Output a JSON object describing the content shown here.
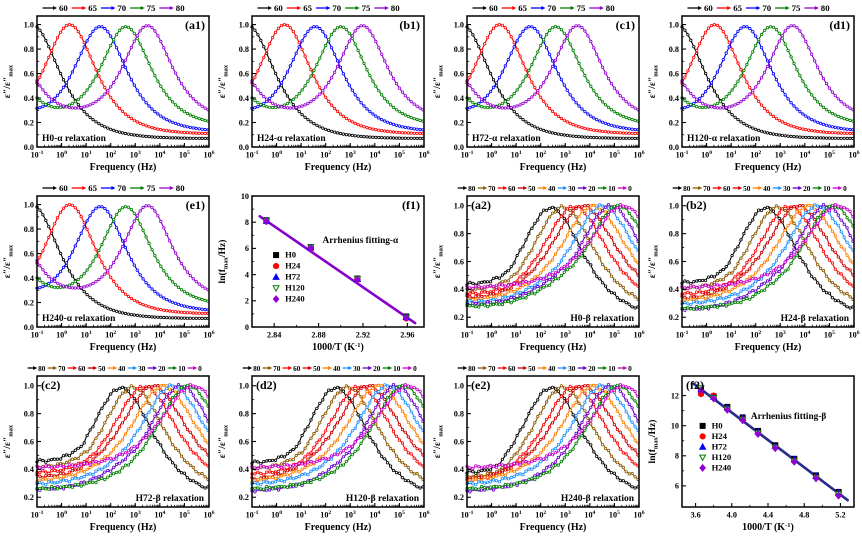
{
  "figure": {
    "background": "#ffffff",
    "columns": 4,
    "rows": 3
  },
  "series_defs": {
    "alpha": [
      {
        "name": "60",
        "color": "#000000",
        "xp": -1.2,
        "p": 1.0,
        "e6": 0.07,
        "t0": 0.0,
        "k": 1.0
      },
      {
        "name": "65",
        "color": "#ff0000",
        "xp": 0.33,
        "p": 1.0,
        "e6": 0.11,
        "t0": 0.0,
        "k": 1.05
      },
      {
        "name": "70",
        "color": "#0000ff",
        "xp": 1.58,
        "p": 0.98,
        "e6": 0.14,
        "t0": 0.08,
        "k": 1.05
      },
      {
        "name": "75",
        "color": "#008000",
        "xp": 2.62,
        "p": 0.98,
        "e6": 0.21,
        "t0": 0.2,
        "k": 1.1
      },
      {
        "name": "80",
        "color": "#9400d3",
        "xp": 3.5,
        "p": 0.99,
        "e6": 0.3,
        "t0": 0.32,
        "k": 1.15
      }
    ],
    "beta": [
      {
        "name": "80",
        "color": "#000000",
        "xp": 2.42,
        "p": 0.985,
        "e6": 0.26,
        "k": 0.85
      },
      {
        "name": "70",
        "color": "#8b5a00",
        "xp": 2.9,
        "p": 0.99,
        "e6": 0.33,
        "k": 0.85
      },
      {
        "name": "60",
        "color": "#ff0000",
        "xp": 3.37,
        "p": 0.995,
        "e6": 0.42,
        "k": 0.85
      },
      {
        "name": "50",
        "color": "#cc0000",
        "xp": 3.73,
        "p": 1.0,
        "e6": 0.5,
        "k": 0.85
      },
      {
        "name": "40",
        "color": "#ff8000",
        "xp": 4.15,
        "p": 1.0,
        "e6": 0.58,
        "k": 0.85
      },
      {
        "name": "30",
        "color": "#1e90ff",
        "xp": 4.52,
        "p": 1.0,
        "e6": 0.66,
        "k": 0.85
      },
      {
        "name": "20",
        "color": "#6600cc",
        "xp": 4.85,
        "p": 1.0,
        "e6": 0.74,
        "k": 0.85
      },
      {
        "name": "10",
        "color": "#008000",
        "xp": 5.15,
        "p": 1.0,
        "e6": 0.84,
        "k": 0.85
      },
      {
        "name": "0",
        "color": "#cc00cc",
        "xp": 5.35,
        "p": 1.0,
        "e6": 0.92,
        "k": 0.85
      }
    ],
    "arrhenius_legend": [
      {
        "name": "H0",
        "color": "#000000",
        "marker": "square",
        "open": false
      },
      {
        "name": "H24",
        "color": "#ff0000",
        "marker": "circle",
        "open": false
      },
      {
        "name": "H72",
        "color": "#0000ff",
        "marker": "triangle",
        "open": false
      },
      {
        "name": "H120",
        "color": "#008000",
        "marker": "tridown",
        "open": true
      },
      {
        "name": "H240",
        "color": "#9400d3",
        "marker": "diamond",
        "open": false
      }
    ]
  },
  "chart_data": [
    {
      "id": "a1",
      "type": "line",
      "model": "alpha",
      "panel_label": "(a1)",
      "panel_pos": "tr",
      "title": "H0-α relaxation",
      "title_pos": "bl",
      "xlabel": "Frequency (Hz)",
      "ylabel": {
        "pre": "ε″/ε″",
        "sub": "max"
      },
      "xlog": true,
      "xrange": [
        -1,
        6
      ],
      "yrange": [
        0,
        1.07
      ],
      "yticks": [
        0.0,
        0.2,
        0.4,
        0.6,
        0.8,
        1.0
      ],
      "ytick_decimals": 1,
      "legend_pos": "top",
      "series": "alpha"
    },
    {
      "id": "b1",
      "type": "line",
      "model": "alpha",
      "panel_label": "(b1)",
      "panel_pos": "tr",
      "title": "H24-α relaxation",
      "title_pos": "bl",
      "xlabel": "Frequency (Hz)",
      "ylabel": {
        "pre": "ε″/ε″",
        "sub": "max"
      },
      "xlog": true,
      "xrange": [
        -1,
        6
      ],
      "yrange": [
        0,
        1.07
      ],
      "yticks": [
        0.0,
        0.2,
        0.4,
        0.6,
        0.8,
        1.0
      ],
      "ytick_decimals": 1,
      "legend_pos": "top",
      "series": "alpha"
    },
    {
      "id": "c1",
      "type": "line",
      "model": "alpha",
      "panel_label": "(c1)",
      "panel_pos": "tr",
      "title": "H72-α relaxation",
      "title_pos": "bl",
      "xlabel": "Frequency (Hz)",
      "ylabel": {
        "pre": "ε″/ε″",
        "sub": "max"
      },
      "xlog": true,
      "xrange": [
        -1,
        6
      ],
      "yrange": [
        0,
        1.07
      ],
      "yticks": [
        0.0,
        0.2,
        0.4,
        0.6,
        0.8,
        1.0
      ],
      "ytick_decimals": 1,
      "legend_pos": "top",
      "series": "alpha"
    },
    {
      "id": "d1",
      "type": "line",
      "model": "alpha",
      "panel_label": "(d1)",
      "panel_pos": "tr",
      "title": "H120-α relaxation",
      "title_pos": "bl",
      "xlabel": "Frequency (Hz)",
      "ylabel": {
        "pre": "ε″/ε″",
        "sub": "max"
      },
      "xlog": true,
      "xrange": [
        -1,
        6
      ],
      "yrange": [
        0,
        1.07
      ],
      "yticks": [
        0.0,
        0.2,
        0.4,
        0.6,
        0.8,
        1.0
      ],
      "ytick_decimals": 1,
      "legend_pos": "top",
      "series": "alpha"
    },
    {
      "id": "e1",
      "type": "line",
      "model": "alpha",
      "panel_label": "(e1)",
      "panel_pos": "tr",
      "title": "H240-α relaxation",
      "title_pos": "bl",
      "xlabel": "Frequency (Hz)",
      "ylabel": {
        "pre": "ε″/ε″",
        "sub": "max"
      },
      "xlog": true,
      "xrange": [
        -1,
        6
      ],
      "yrange": [
        0,
        1.07
      ],
      "yticks": [
        0.0,
        0.2,
        0.4,
        0.6,
        0.8,
        1.0
      ],
      "ytick_decimals": 1,
      "legend_pos": "top",
      "series": "alpha"
    },
    {
      "id": "f1",
      "type": "scatter",
      "model": "arrhenius",
      "panel_label": "(f1)",
      "panel_pos": "tr",
      "annotation": {
        "text": "Arrhenius fitting-α",
        "fx": 0.63,
        "fy": 0.36
      },
      "xlabel": {
        "pre": "1000/T (K",
        "sup": "-1",
        "post": ")"
      },
      "ylabel": {
        "pre": "ln(f",
        "sub": "max",
        "post": "/Hz)"
      },
      "xrange": [
        2.82,
        2.975
      ],
      "xticks": [
        2.84,
        2.88,
        2.92,
        2.96
      ],
      "xtick_decimals": 2,
      "yrange": [
        0,
        10
      ],
      "yticks": [
        0,
        2,
        4,
        6,
        8,
        10
      ],
      "ytick_decimals": 0,
      "x": [
        2.833,
        2.873,
        2.915,
        2.959
      ],
      "series_y": [
        [
          8.15,
          6.1,
          3.7,
          0.8
        ],
        [
          8.05,
          6.0,
          3.6,
          0.65
        ],
        [
          8.1,
          6.05,
          3.65,
          0.75
        ],
        [
          8.12,
          6.08,
          3.68,
          0.72
        ],
        [
          8.08,
          6.02,
          3.62,
          0.7
        ]
      ],
      "fit_line": {
        "color": "#8800cc",
        "x1": 2.827,
        "y1": 8.45,
        "x2": 2.967,
        "y2": 0.3
      },
      "legend": {
        "fx": 0.14,
        "fy": 0.47,
        "dy": 11
      }
    },
    {
      "id": "a2",
      "type": "line",
      "model": "beta",
      "panel_label": "(a2)",
      "panel_pos": "tl",
      "title": "H0-β relaxation",
      "title_pos": "br",
      "xlabel": "Frequency (Hz)",
      "ylabel": {
        "pre": "ε″/ε″",
        "sub": "max"
      },
      "xlog": true,
      "xrange": [
        -1,
        6
      ],
      "yrange": [
        0.13,
        1.07
      ],
      "yticks": [
        0.2,
        0.4,
        0.6,
        0.8,
        1.0
      ],
      "ytick_decimals": 1,
      "legend_pos": "top",
      "series": "beta",
      "start_ys": [
        0.44,
        0.4,
        0.37,
        0.345,
        0.325,
        0.31,
        0.295,
        0.28,
        0.26
      ]
    },
    {
      "id": "b2",
      "type": "line",
      "model": "beta",
      "panel_label": "(b2)",
      "panel_pos": "tl",
      "title": "H24-β relaxation",
      "title_pos": "br",
      "xlabel": "Frequency (Hz)",
      "ylabel": {
        "pre": "ε″/ε″",
        "sub": "max"
      },
      "xlog": true,
      "xrange": [
        -1,
        6
      ],
      "yrange": [
        0.13,
        1.07
      ],
      "yticks": [
        0.2,
        0.4,
        0.6,
        0.8,
        1.0
      ],
      "ytick_decimals": 1,
      "legend_pos": "top",
      "series": "beta",
      "start_ys": [
        0.45,
        0.41,
        0.37,
        0.34,
        0.31,
        0.285,
        0.26,
        0.235,
        0.18
      ]
    },
    {
      "id": "c2",
      "type": "line",
      "model": "beta",
      "panel_label": "(c2)",
      "panel_pos": "tl",
      "title": "H72-β relaxation",
      "title_pos": "br",
      "xlabel": "Frequency (Hz)",
      "ylabel": {
        "pre": "ε″/ε″",
        "sub": "max"
      },
      "xlog": true,
      "xrange": [
        -1,
        6
      ],
      "yrange": [
        0.13,
        1.07
      ],
      "yticks": [
        0.2,
        0.4,
        0.6,
        0.8,
        1.0
      ],
      "ytick_decimals": 1,
      "legend_pos": "top",
      "series": "beta",
      "start_ys": [
        0.46,
        0.42,
        0.38,
        0.35,
        0.32,
        0.29,
        0.26,
        0.21,
        0.19
      ]
    },
    {
      "id": "d2",
      "type": "line",
      "model": "beta",
      "panel_label": "(d2)",
      "panel_pos": "tl",
      "title": "H120-β relaxation",
      "title_pos": "br",
      "xlabel": "Frequency (Hz)",
      "ylabel": {
        "pre": "ε″/ε″",
        "sub": "max"
      },
      "xlog": true,
      "xrange": [
        -1,
        6
      ],
      "yrange": [
        0.13,
        1.07
      ],
      "yticks": [
        0.2,
        0.4,
        0.6,
        0.8,
        1.0
      ],
      "ytick_decimals": 1,
      "legend_pos": "top",
      "series": "beta",
      "start_ys": [
        0.45,
        0.41,
        0.37,
        0.33,
        0.3,
        0.27,
        0.24,
        0.19,
        0.15
      ]
    },
    {
      "id": "e2",
      "type": "line",
      "model": "beta",
      "panel_label": "(e2)",
      "panel_pos": "tl",
      "title": "H240-β relaxation",
      "title_pos": "br",
      "xlabel": "Frequency (Hz)",
      "ylabel": {
        "pre": "ε″/ε″",
        "sub": "max"
      },
      "xlog": true,
      "xrange": [
        -1,
        6
      ],
      "yrange": [
        0.13,
        1.07
      ],
      "yticks": [
        0.2,
        0.4,
        0.6,
        0.8,
        1.0
      ],
      "ytick_decimals": 1,
      "legend_pos": "top",
      "series": "beta",
      "start_ys": [
        0.38,
        0.35,
        0.33,
        0.3,
        0.28,
        0.26,
        0.23,
        0.2,
        0.17
      ]
    },
    {
      "id": "f2",
      "type": "scatter",
      "model": "arrhenius",
      "panel_label": "(f2)",
      "panel_pos": "tl",
      "annotation": {
        "text": "Arrhenius fitting-β",
        "fx": 0.62,
        "fy": 0.33
      },
      "xlabel": {
        "pre": "1000/T (K",
        "sup": "-1",
        "post": ")"
      },
      "ylabel": {
        "pre": "ln(f",
        "sub": "max",
        "post": "/Hz)"
      },
      "xrange": [
        3.45,
        5.35
      ],
      "xticks": [
        3.6,
        4.0,
        4.4,
        4.8,
        5.2
      ],
      "xtick_decimals": 1,
      "yrange": [
        4.6,
        13.3
      ],
      "yticks": [
        6,
        8,
        10,
        12
      ],
      "ytick_decimals": 0,
      "x": [
        3.66,
        3.8,
        3.95,
        4.12,
        4.29,
        4.48,
        4.69,
        4.93,
        5.18
      ],
      "series_y": [
        [
          12.45,
          11.95,
          11.25,
          10.55,
          9.65,
          8.7,
          7.8,
          6.7,
          5.6
        ],
        [
          12.1,
          12.0,
          11.15,
          10.45,
          9.55,
          8.6,
          7.7,
          6.6,
          5.5
        ],
        [
          12.4,
          11.9,
          11.2,
          10.5,
          9.6,
          8.65,
          7.75,
          6.65,
          5.55
        ],
        [
          12.5,
          11.85,
          11.1,
          10.4,
          9.5,
          8.55,
          7.65,
          6.55,
          5.45
        ],
        [
          12.35,
          11.8,
          11.05,
          10.35,
          9.45,
          8.5,
          7.6,
          6.5,
          5.35
        ]
      ],
      "fit_line": {
        "color": "#2b2b8f",
        "x1": 3.58,
        "y1": 12.78,
        "x2": 5.28,
        "y2": 5.05
      },
      "legend": {
        "fx": 0.12,
        "fy": 0.4,
        "dy": 10.5
      }
    }
  ]
}
